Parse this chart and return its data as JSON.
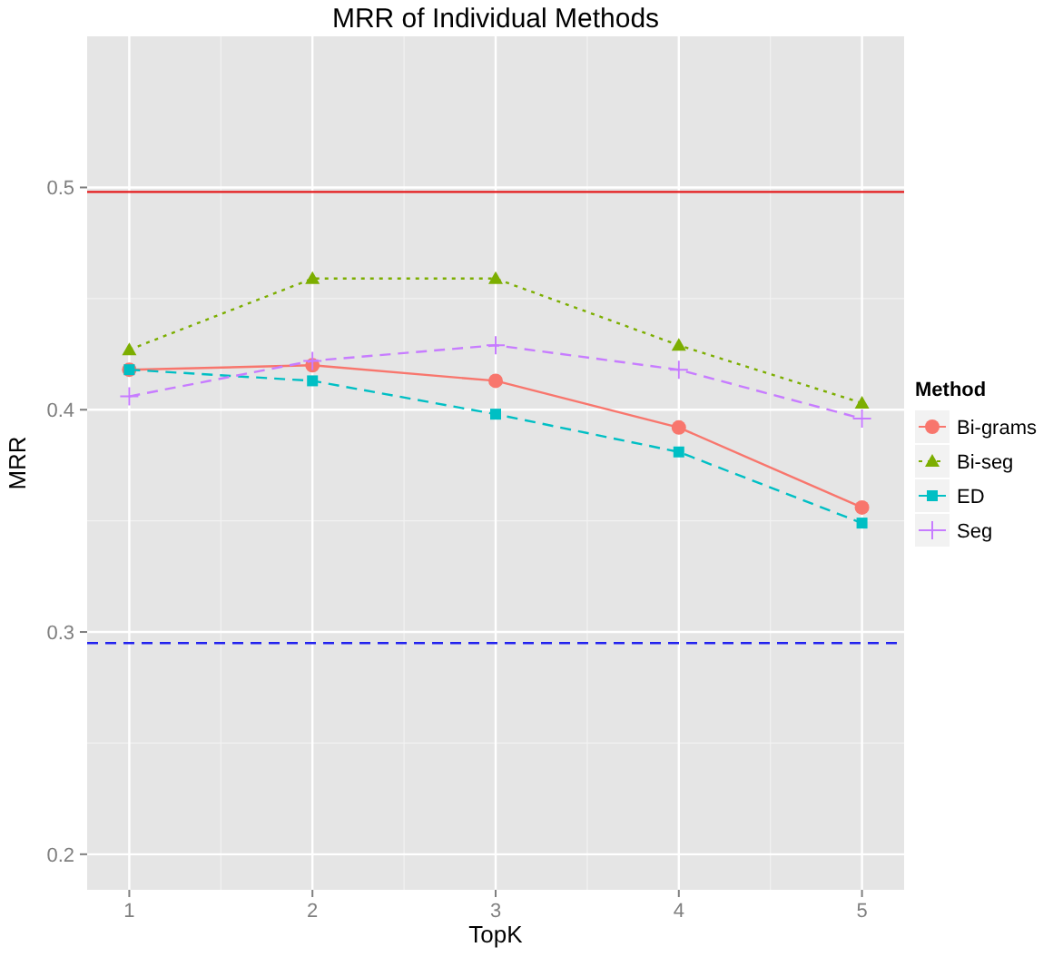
{
  "chart_data": {
    "type": "line",
    "title": "MRR of Individual Methods",
    "xlabel": "TopK",
    "ylabel": "MRR",
    "legend_title": "Method",
    "legend": "right",
    "grid": true,
    "x": [
      1,
      2,
      3,
      4,
      5
    ],
    "xlim": [
      0.77,
      5.23
    ],
    "xticks": [
      1,
      2,
      3,
      4,
      5
    ],
    "ylim": [
      0.184,
      0.568
    ],
    "yticks": [
      0.2,
      0.3,
      0.4,
      0.5
    ],
    "series": [
      {
        "name": "Bi-grams",
        "color": "#f8766d",
        "marker": "circle",
        "line_style": "solid",
        "values": [
          0.418,
          0.42,
          0.413,
          0.392,
          0.356
        ]
      },
      {
        "name": "Bi-seg",
        "color": "#7cae00",
        "marker": "triangle",
        "line_style": "dotted",
        "values": [
          0.427,
          0.459,
          0.459,
          0.429,
          0.403
        ]
      },
      {
        "name": "ED",
        "color": "#00bfc4",
        "marker": "square",
        "line_style": "dashed",
        "values": [
          0.418,
          0.413,
          0.398,
          0.381,
          0.349
        ]
      },
      {
        "name": "Seg",
        "color": "#c77cff",
        "marker": "cross",
        "line_style": "dashed",
        "values": [
          0.406,
          0.422,
          0.429,
          0.418,
          0.396
        ]
      }
    ],
    "ref_lines": [
      {
        "axis": "y",
        "value": 0.498,
        "color": "#e41a1c",
        "line_style": "solid"
      },
      {
        "axis": "y",
        "value": 0.295,
        "color": "#2222ee",
        "line_style": "dashed"
      }
    ]
  }
}
